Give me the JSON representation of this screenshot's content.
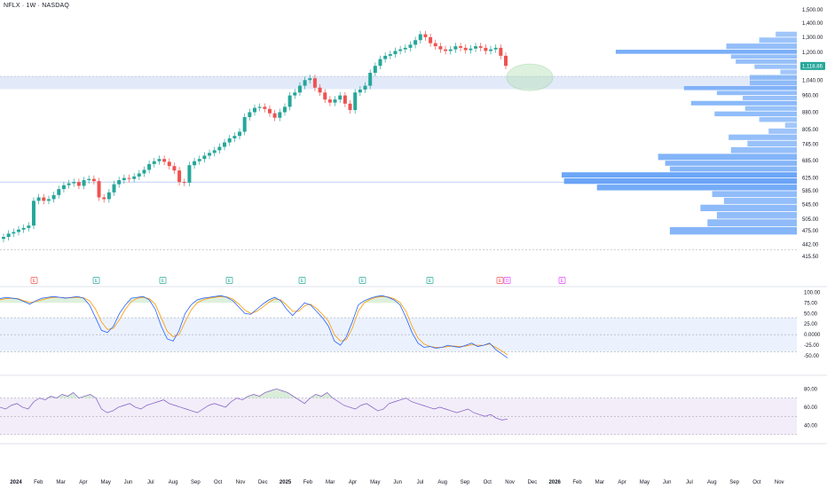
{
  "header": {
    "title": "NFLX · 1W · NASDAQ"
  },
  "price_label": {
    "value": "1,118.86",
    "color": "#26a69a"
  },
  "colors": {
    "up": "#26a69a",
    "down": "#ef5350",
    "volume_profile": "#5b9cf6",
    "stoch_k": "#2962ff",
    "stoch_d": "#ff9800",
    "rsi": "#7e57c2",
    "stoch_band": "#e3ecfd",
    "rsi_band": "#efe9f7",
    "highlight_zone": "#cfdcf7",
    "target_ellipse": "#b7e1b9"
  },
  "chart_data": [
    {
      "type": "candlestick",
      "title": "NFLX · 1W · NASDAQ",
      "yscale": "log",
      "ylim": [
        410,
        1520
      ],
      "yticks": [
        "1,500.00",
        "1,400.00",
        "1,300.00",
        "1,200.00",
        "1,118.86",
        "1,040.00",
        "960.00",
        "880.00",
        "805.00",
        "745.00",
        "685.00",
        "625.00",
        "585.00",
        "545.00",
        "505.00",
        "475.00",
        "442.00",
        "415.50"
      ],
      "x_ticks": [
        "2024",
        "Feb",
        "Mar",
        "Apr",
        "May",
        "Jun",
        "Jul",
        "Aug",
        "Sep",
        "Oct",
        "Nov",
        "Dec",
        "2025",
        "Feb",
        "Mar",
        "Apr",
        "May",
        "Jun",
        "Jul",
        "Aug",
        "Sep",
        "Oct",
        "Nov",
        "Dec",
        "2026",
        "Feb",
        "Mar",
        "Apr",
        "May",
        "Jun",
        "Jul",
        "Aug",
        "Sep",
        "Oct",
        "Nov"
      ],
      "closes": [
        460,
        468,
        472,
        478,
        482,
        488,
        555,
        565,
        555,
        560,
        572,
        590,
        602,
        608,
        612,
        600,
        618,
        622,
        615,
        565,
        560,
        580,
        605,
        618,
        625,
        622,
        630,
        640,
        652,
        672,
        682,
        690,
        680,
        665,
        650,
        612,
        610,
        668,
        682,
        690,
        702,
        712,
        722,
        735,
        752,
        768,
        778,
        795,
        858,
        880,
        900,
        905,
        895,
        875,
        855,
        880,
        905,
        960,
        975,
        1010,
        1040,
        1050,
        1000,
        975,
        940,
        925,
        940,
        960,
        920,
        890,
        975,
        990,
        1010,
        1080,
        1120,
        1160,
        1180,
        1190,
        1210,
        1220,
        1230,
        1250,
        1280,
        1320,
        1300,
        1260,
        1240,
        1220,
        1210,
        1220,
        1240,
        1230,
        1215,
        1225,
        1240,
        1230,
        1210,
        1220,
        1230,
        1180,
        1120
      ],
      "volume_profile_rows": [
        {
          "low": 1300,
          "high": 1340,
          "vol": 0.09
        },
        {
          "low": 1260,
          "high": 1300,
          "vol": 0.16
        },
        {
          "low": 1220,
          "high": 1260,
          "vol": 0.3
        },
        {
          "low": 1190,
          "high": 1220,
          "vol": 0.77
        },
        {
          "low": 1160,
          "high": 1190,
          "vol": 0.28
        },
        {
          "low": 1130,
          "high": 1160,
          "vol": 0.26
        },
        {
          "low": 1100,
          "high": 1130,
          "vol": 0.18
        },
        {
          "low": 1070,
          "high": 1100,
          "vol": 0.07
        },
        {
          "low": 1040,
          "high": 1070,
          "vol": 0.2
        },
        {
          "low": 1010,
          "high": 1040,
          "vol": 0.2
        },
        {
          "low": 985,
          "high": 1010,
          "vol": 0.48
        },
        {
          "low": 960,
          "high": 985,
          "vol": 0.34
        },
        {
          "low": 935,
          "high": 960,
          "vol": 0.23
        },
        {
          "low": 910,
          "high": 935,
          "vol": 0.45
        },
        {
          "low": 885,
          "high": 910,
          "vol": 0.22
        },
        {
          "low": 860,
          "high": 885,
          "vol": 0.35
        },
        {
          "low": 835,
          "high": 860,
          "vol": 0.16
        },
        {
          "low": 810,
          "high": 835,
          "vol": 0.05
        },
        {
          "low": 785,
          "high": 810,
          "vol": 0.12
        },
        {
          "low": 760,
          "high": 785,
          "vol": 0.29
        },
        {
          "low": 735,
          "high": 760,
          "vol": 0.21
        },
        {
          "low": 710,
          "high": 735,
          "vol": 0.28
        },
        {
          "low": 685,
          "high": 710,
          "vol": 0.59
        },
        {
          "low": 665,
          "high": 685,
          "vol": 0.56
        },
        {
          "low": 645,
          "high": 665,
          "vol": 0.54
        },
        {
          "low": 625,
          "high": 645,
          "vol": 1.0
        },
        {
          "low": 605,
          "high": 625,
          "vol": 0.99
        },
        {
          "low": 585,
          "high": 605,
          "vol": 0.85
        },
        {
          "low": 565,
          "high": 585,
          "vol": 0.36
        },
        {
          "low": 545,
          "high": 565,
          "vol": 0.31
        },
        {
          "low": 525,
          "high": 545,
          "vol": 0.41
        },
        {
          "low": 505,
          "high": 525,
          "vol": 0.34
        },
        {
          "low": 485,
          "high": 505,
          "vol": 0.38
        },
        {
          "low": 465,
          "high": 485,
          "vol": 0.54
        }
      ],
      "highlight_zone": [
        992,
        1062
      ],
      "reference_lines": [
        1060,
        612,
        430
      ]
    },
    {
      "type": "line",
      "name": "stochastic",
      "ylim": [
        -75,
        105
      ],
      "yticks": [
        "100.00",
        "75.00",
        "50.00",
        "25.00",
        "0.0000",
        "-25.00",
        "-50.00"
      ],
      "k": [
        85,
        88,
        86,
        84,
        78,
        72,
        80,
        86,
        88,
        90,
        88,
        86,
        88,
        90,
        86,
        70,
        40,
        10,
        5,
        20,
        50,
        70,
        86,
        88,
        90,
        82,
        60,
        20,
        -10,
        -15,
        10,
        50,
        70,
        82,
        86,
        88,
        90,
        92,
        88,
        80,
        65,
        50,
        48,
        60,
        72,
        82,
        88,
        80,
        60,
        45,
        60,
        75,
        70,
        55,
        40,
        20,
        -15,
        -25,
        -5,
        30,
        70,
        80,
        86,
        90,
        92,
        88,
        82,
        70,
        40,
        5,
        -20,
        -30,
        -28,
        -32,
        -30,
        -25,
        -28,
        -30,
        -25,
        -20,
        -28,
        -25,
        -20,
        -35,
        -45,
        -55
      ],
      "d": [
        82,
        85,
        86,
        85,
        80,
        76,
        78,
        82,
        86,
        88,
        88,
        87,
        87,
        88,
        87,
        80,
        60,
        30,
        12,
        15,
        35,
        60,
        78,
        86,
        88,
        85,
        72,
        40,
        8,
        -5,
        0,
        30,
        58,
        75,
        82,
        86,
        88,
        90,
        89,
        84,
        72,
        58,
        50,
        55,
        65,
        76,
        84,
        82,
        70,
        55,
        55,
        68,
        72,
        62,
        48,
        32,
        0,
        -15,
        -12,
        15,
        55,
        75,
        83,
        88,
        90,
        89,
        85,
        76,
        55,
        20,
        -8,
        -22,
        -28,
        -30,
        -30,
        -28,
        -27,
        -28,
        -27,
        -24,
        -25,
        -25,
        -22,
        -30,
        -38,
        -48
      ]
    },
    {
      "type": "line",
      "name": "rsi",
      "ylim": [
        25,
        90
      ],
      "yticks": [
        "80.00",
        "60.00",
        "40.00"
      ],
      "values": [
        60,
        58,
        62,
        64,
        60,
        58,
        66,
        70,
        68,
        72,
        70,
        74,
        72,
        76,
        70,
        72,
        74,
        70,
        58,
        54,
        56,
        60,
        62,
        64,
        60,
        58,
        62,
        64,
        66,
        68,
        64,
        62,
        60,
        58,
        56,
        54,
        58,
        62,
        64,
        62,
        60,
        66,
        70,
        68,
        72,
        74,
        72,
        76,
        78,
        80,
        78,
        76,
        72,
        68,
        64,
        70,
        74,
        72,
        76,
        70,
        66,
        62,
        60,
        58,
        62,
        64,
        60,
        56,
        58,
        64,
        66,
        68,
        70,
        66,
        64,
        62,
        60,
        58,
        60,
        58,
        56,
        54,
        56,
        58,
        54,
        52,
        50,
        52,
        48,
        46,
        47
      ]
    }
  ],
  "earnings_markers": [
    {
      "label": "E",
      "color": "#ef5350"
    },
    {
      "label": "E",
      "color": "#26a69a"
    },
    {
      "label": "E",
      "color": "#26a69a"
    },
    {
      "label": "E",
      "color": "#26a69a"
    },
    {
      "label": "E",
      "color": "#26a69a"
    },
    {
      "label": "E",
      "color": "#26a69a"
    },
    {
      "label": "E",
      "color": "#26a69a"
    },
    {
      "label": "E",
      "color": "#ef5350"
    },
    {
      "label": "D",
      "color": "#e040fb"
    },
    {
      "label": "E",
      "color": "#e040fb"
    }
  ]
}
